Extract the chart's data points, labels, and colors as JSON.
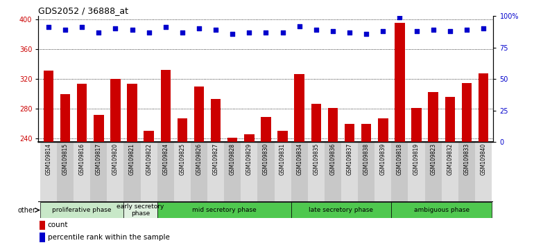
{
  "title": "GDS2052 / 36888_at",
  "samples": [
    "GSM109814",
    "GSM109815",
    "GSM109816",
    "GSM109817",
    "GSM109820",
    "GSM109821",
    "GSM109822",
    "GSM109824",
    "GSM109825",
    "GSM109826",
    "GSM109827",
    "GSM109828",
    "GSM109829",
    "GSM109830",
    "GSM109831",
    "GSM109834",
    "GSM109835",
    "GSM109836",
    "GSM109837",
    "GSM109838",
    "GSM109839",
    "GSM109818",
    "GSM109819",
    "GSM109823",
    "GSM109832",
    "GSM109833",
    "GSM109840"
  ],
  "counts": [
    331,
    300,
    314,
    272,
    320,
    314,
    250,
    332,
    267,
    310,
    293,
    241,
    246,
    269,
    250,
    327,
    287,
    281,
    260,
    260,
    267,
    396,
    281,
    302,
    296,
    315,
    328
  ],
  "percentiles": [
    91,
    89,
    91,
    87,
    90,
    89,
    87,
    91,
    87,
    90,
    89,
    86,
    87,
    87,
    87,
    92,
    89,
    88,
    87,
    86,
    88,
    99,
    88,
    89,
    88,
    89,
    90
  ],
  "phases": [
    {
      "name": "proliferative phase",
      "start": 0,
      "end": 5,
      "color": "#c8e8c8"
    },
    {
      "name": "early secretory\nphase",
      "start": 5,
      "end": 7,
      "color": "#dff0df"
    },
    {
      "name": "mid secretory phase",
      "start": 7,
      "end": 15,
      "color": "#6dc96d"
    },
    {
      "name": "late secretory phase",
      "start": 15,
      "end": 21,
      "color": "#6dc96d"
    },
    {
      "name": "ambiguous phase",
      "start": 21,
      "end": 27,
      "color": "#6dc96d"
    }
  ],
  "ylim_left": [
    235,
    405
  ],
  "ylim_right": [
    0,
    100
  ],
  "yticks_left": [
    240,
    280,
    320,
    360,
    400
  ],
  "yticks_right": [
    0,
    25,
    50,
    75,
    100
  ],
  "bar_color": "#cc0000",
  "dot_color": "#0000cc",
  "bar_width": 0.6,
  "title_fontsize": 9,
  "sample_fontsize": 5.5,
  "phase_fontsize": 6.5,
  "legend_fontsize": 7.5
}
